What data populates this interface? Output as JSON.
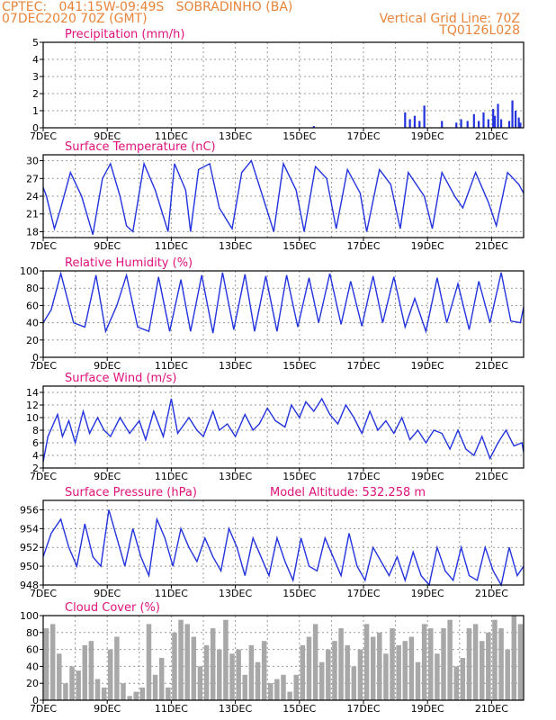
{
  "header": {
    "line1": "CPTEC:   041:15W-09:49S   SOBRADINHO (BA)",
    "line2": "07DEC2020 70Z (GMT)",
    "grid_note": "Vertical Grid Line: 70Z",
    "code": "TQ0126L028"
  },
  "colors": {
    "header": "#e8843a",
    "title": "#e0127a",
    "line": "#2233dd",
    "cloud": "#a8a8a8",
    "grid": "#999999",
    "axis": "#000000"
  },
  "x_ticks": [
    "7DEC",
    "9DEC",
    "11DEC",
    "13DEC",
    "15DEC",
    "17DEC",
    "19DEC",
    "21DEC"
  ],
  "x_range_days": [
    7,
    22
  ],
  "chart_data": [
    {
      "type": "bar",
      "title": "Precipitation (mm/h)",
      "ylim": [
        0,
        5
      ],
      "yticks": [
        0,
        1,
        2,
        3,
        4,
        5
      ],
      "x": [
        15.45,
        18.3,
        18.45,
        18.6,
        18.75,
        18.9,
        19.45,
        19.9,
        20.05,
        20.25,
        20.45,
        20.6,
        20.75,
        20.9,
        21.05,
        21.1,
        21.2,
        21.3,
        21.55,
        21.65,
        21.75,
        21.85,
        21.9
      ],
      "values": [
        0.1,
        0.9,
        0.5,
        0.7,
        0.4,
        1.3,
        0.4,
        0.3,
        0.5,
        0.4,
        0.8,
        0.4,
        0.9,
        0.5,
        1.1,
        0.7,
        1.4,
        0.5,
        0.4,
        1.6,
        1.0,
        0.6,
        0.3
      ]
    },
    {
      "type": "line",
      "title": "Surface Temperature (nC)",
      "ylim": [
        17,
        31
      ],
      "yticks": [
        18,
        21,
        24,
        27,
        30
      ],
      "series": [
        {
          "x": [
            7.0,
            7.1,
            7.35,
            7.55,
            7.85,
            8.2,
            8.55,
            8.85,
            9.1,
            9.4,
            9.6,
            9.8,
            10.15,
            10.5,
            10.9,
            11.1,
            11.45,
            11.6,
            11.85,
            12.2,
            12.5,
            12.9,
            13.2,
            13.5,
            13.85,
            14.2,
            14.5,
            14.9,
            15.15,
            15.5,
            15.85,
            16.15,
            16.5,
            16.9,
            17.1,
            17.5,
            17.85,
            18.15,
            18.4,
            18.9,
            19.15,
            19.45,
            19.85,
            20.1,
            20.5,
            20.9,
            21.15,
            21.5,
            21.85,
            22.0
          ],
          "values": [
            25.5,
            24,
            18.5,
            22,
            28,
            24,
            17.5,
            27,
            29.5,
            24,
            19,
            18,
            29.5,
            25,
            18,
            29.5,
            25,
            18,
            28.5,
            29.5,
            22,
            18.5,
            28,
            30,
            24,
            18,
            29.5,
            25,
            18,
            29,
            27,
            18.5,
            28.5,
            24.5,
            18,
            28.5,
            26,
            18.5,
            28,
            24,
            18.5,
            28,
            24,
            22,
            28,
            23,
            19,
            28,
            26,
            24.5
          ]
        }
      ]
    },
    {
      "type": "line",
      "title": "Relative Humidity (%)",
      "ylim": [
        0,
        100
      ],
      "yticks": [
        0,
        20,
        40,
        60,
        80,
        100
      ],
      "series": [
        {
          "x": [
            7.0,
            7.25,
            7.55,
            7.95,
            8.3,
            8.65,
            8.95,
            9.3,
            9.6,
            9.95,
            10.3,
            10.6,
            10.95,
            11.3,
            11.6,
            11.95,
            12.3,
            12.6,
            12.95,
            13.3,
            13.6,
            13.95,
            14.3,
            14.6,
            14.95,
            15.3,
            15.6,
            15.95,
            16.3,
            16.6,
            16.95,
            17.3,
            17.6,
            17.95,
            18.3,
            18.6,
            18.95,
            19.3,
            19.6,
            19.95,
            20.3,
            20.6,
            20.95,
            21.3,
            21.6,
            21.9,
            22.0
          ],
          "values": [
            40,
            55,
            97,
            40,
            35,
            95,
            30,
            60,
            95,
            35,
            30,
            93,
            30,
            90,
            30,
            95,
            28,
            98,
            32,
            96,
            30,
            94,
            30,
            95,
            35,
            92,
            40,
            97,
            38,
            88,
            36,
            94,
            40,
            93,
            35,
            68,
            30,
            92,
            40,
            85,
            32,
            88,
            40,
            98,
            42,
            40,
            58
          ]
        }
      ]
    },
    {
      "type": "line",
      "title": "Surface Wind (m/s)",
      "ylim": [
        2,
        15
      ],
      "yticks": [
        2,
        4,
        6,
        8,
        10,
        12,
        14
      ],
      "series": [
        {
          "x": [
            7.0,
            7.15,
            7.45,
            7.6,
            7.8,
            8.0,
            8.25,
            8.45,
            8.7,
            8.9,
            9.1,
            9.4,
            9.7,
            10.0,
            10.2,
            10.45,
            10.75,
            11.0,
            11.2,
            11.55,
            11.8,
            12.0,
            12.3,
            12.5,
            12.75,
            13.0,
            13.3,
            13.55,
            13.75,
            14.0,
            14.25,
            14.55,
            14.75,
            15.0,
            15.2,
            15.45,
            15.7,
            15.95,
            16.2,
            16.45,
            16.7,
            16.95,
            17.2,
            17.45,
            17.7,
            17.95,
            18.2,
            18.45,
            18.7,
            18.95,
            19.2,
            19.45,
            19.7,
            19.95,
            20.2,
            20.45,
            20.7,
            20.95,
            21.2,
            21.45,
            21.7,
            21.95,
            22.0
          ],
          "values": [
            3,
            7,
            10.5,
            7,
            9.5,
            6,
            11,
            7.5,
            10,
            8,
            7,
            10,
            7.5,
            9.5,
            6.5,
            11,
            7,
            13,
            7.5,
            10,
            8,
            7,
            11,
            8,
            9,
            7,
            10.5,
            8,
            9,
            11.5,
            9.5,
            8.5,
            12,
            10,
            12.5,
            11,
            13,
            10.5,
            9,
            12,
            10,
            7.5,
            11,
            8,
            9.5,
            7.5,
            10,
            6.5,
            8,
            6,
            8,
            7.5,
            5,
            8,
            5,
            4,
            7,
            3.5,
            6,
            8,
            5.5,
            6,
            4.5
          ]
        }
      ]
    },
    {
      "type": "line",
      "title": "Surface Pressure (hPa)",
      "ylim": [
        948,
        957
      ],
      "yticks": [
        948,
        950,
        952,
        954,
        956
      ],
      "annotation": "Model Altitude: 532.258 m",
      "series": [
        {
          "x": [
            7.0,
            7.25,
            7.55,
            7.8,
            8.05,
            8.3,
            8.55,
            8.8,
            9.05,
            9.3,
            9.55,
            9.8,
            10.05,
            10.3,
            10.55,
            10.8,
            11.05,
            11.3,
            11.55,
            11.8,
            12.05,
            12.3,
            12.55,
            12.8,
            13.05,
            13.3,
            13.55,
            13.8,
            14.05,
            14.3,
            14.55,
            14.8,
            15.05,
            15.3,
            15.55,
            15.8,
            16.05,
            16.3,
            16.55,
            16.8,
            17.05,
            17.3,
            17.55,
            17.8,
            18.05,
            18.3,
            18.55,
            18.8,
            19.05,
            19.3,
            19.55,
            19.8,
            20.05,
            20.3,
            20.55,
            20.8,
            21.05,
            21.3,
            21.55,
            21.8,
            22.0
          ],
          "values": [
            951,
            953.5,
            955,
            952,
            950,
            954.5,
            951,
            950,
            956,
            953,
            950,
            954,
            951,
            949,
            955,
            953,
            950,
            954,
            952,
            950.5,
            953,
            951,
            949.5,
            954,
            952,
            949,
            953,
            951,
            949,
            953,
            950.5,
            948.5,
            953,
            950,
            949.5,
            953,
            951,
            949,
            953.5,
            950,
            948.5,
            952,
            950.5,
            949,
            951,
            948.5,
            951.5,
            949,
            948,
            952,
            949.5,
            948.5,
            952,
            949,
            948.5,
            952,
            949.5,
            948,
            952,
            949,
            950
          ]
        }
      ]
    },
    {
      "type": "bar",
      "title": "Cloud Cover (%)",
      "ylim": [
        0,
        100
      ],
      "yticks": [
        0,
        20,
        40,
        60,
        80,
        100
      ],
      "x": [
        7.1,
        7.3,
        7.5,
        7.7,
        7.9,
        8.1,
        8.3,
        8.5,
        8.7,
        8.9,
        9.1,
        9.3,
        9.5,
        9.7,
        9.9,
        10.1,
        10.3,
        10.5,
        10.7,
        10.9,
        11.1,
        11.3,
        11.5,
        11.7,
        11.9,
        12.1,
        12.3,
        12.5,
        12.7,
        12.9,
        13.1,
        13.3,
        13.5,
        13.7,
        13.9,
        14.1,
        14.3,
        14.5,
        14.7,
        14.9,
        15.1,
        15.3,
        15.5,
        15.7,
        15.9,
        16.1,
        16.3,
        16.5,
        16.7,
        16.9,
        17.1,
        17.3,
        17.5,
        17.7,
        17.9,
        18.1,
        18.3,
        18.5,
        18.7,
        18.9,
        19.1,
        19.3,
        19.5,
        19.7,
        19.9,
        20.1,
        20.3,
        20.5,
        20.7,
        20.9,
        21.1,
        21.3,
        21.5,
        21.7,
        21.9
      ],
      "values": [
        85,
        90,
        55,
        20,
        40,
        35,
        65,
        70,
        25,
        15,
        60,
        75,
        20,
        5,
        10,
        15,
        90,
        30,
        50,
        15,
        80,
        95,
        90,
        75,
        40,
        65,
        85,
        60,
        95,
        55,
        60,
        30,
        65,
        45,
        70,
        20,
        25,
        30,
        10,
        30,
        65,
        75,
        90,
        45,
        60,
        70,
        85,
        65,
        40,
        60,
        90,
        75,
        80,
        55,
        85,
        65,
        70,
        75,
        45,
        90,
        85,
        55,
        85,
        95,
        40,
        50,
        85,
        90,
        70,
        80,
        95,
        85,
        60,
        100,
        90
      ]
    }
  ]
}
